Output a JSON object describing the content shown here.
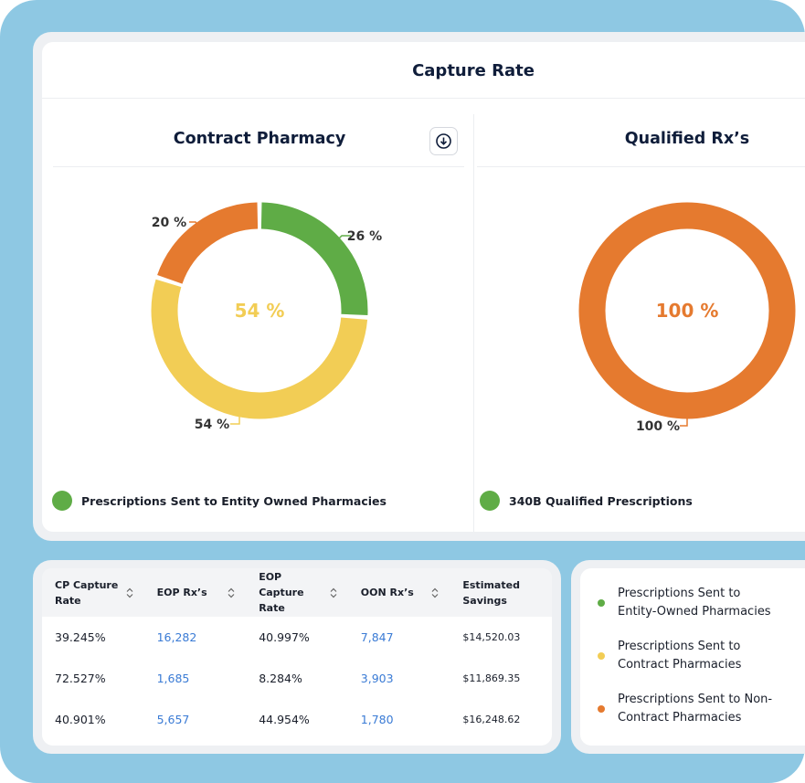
{
  "header": {
    "title": "Capture Rate"
  },
  "charts": [
    {
      "type": "donut",
      "title": "Contract Pharmacy",
      "center_label": "54 %",
      "values": [
        26,
        54,
        20
      ],
      "value_labels": [
        "26 %",
        "54 %",
        "20 %"
      ],
      "colors": [
        "#5fac46",
        "#f2cd55",
        "#e57a2f"
      ],
      "legend": [
        {
          "label": "Prescriptions Sent to Entity Owned Pharmacies",
          "color": "#5fac46"
        }
      ]
    },
    {
      "type": "donut",
      "title": "Qualified Rx’s",
      "center_label": "100 %",
      "values": [
        100
      ],
      "value_labels": [
        "100 %"
      ],
      "colors": [
        "#e57a2f"
      ],
      "legend": [
        {
          "label": "340B Qualified Prescriptions",
          "color": "#5fac46"
        }
      ]
    }
  ],
  "table": {
    "columns": [
      "CP Capture Rate",
      "EOP Rx’s",
      "EOP Capture Rate",
      "OON Rx’s",
      "Estimated Savings"
    ],
    "rows": [
      [
        "39.245%",
        "16,282",
        "40.997%",
        "7,847",
        "$14,520.03"
      ],
      [
        "72.527%",
        "1,685",
        "8.284%",
        "3,903",
        "$11,869.35"
      ],
      [
        "40.901%",
        "5,657",
        "44.954%",
        "1,780",
        "$16,248.62"
      ]
    ]
  },
  "legend": [
    {
      "label": "Prescriptions Sent to Entity-Owned Pharmacies",
      "color": "#5fac46"
    },
    {
      "label": "Prescriptions Sent to Contract Pharmacies",
      "color": "#f2cd55"
    },
    {
      "label": "Prescriptions Sent to Non-Contract Pharmacies",
      "color": "#e57a2f"
    }
  ]
}
